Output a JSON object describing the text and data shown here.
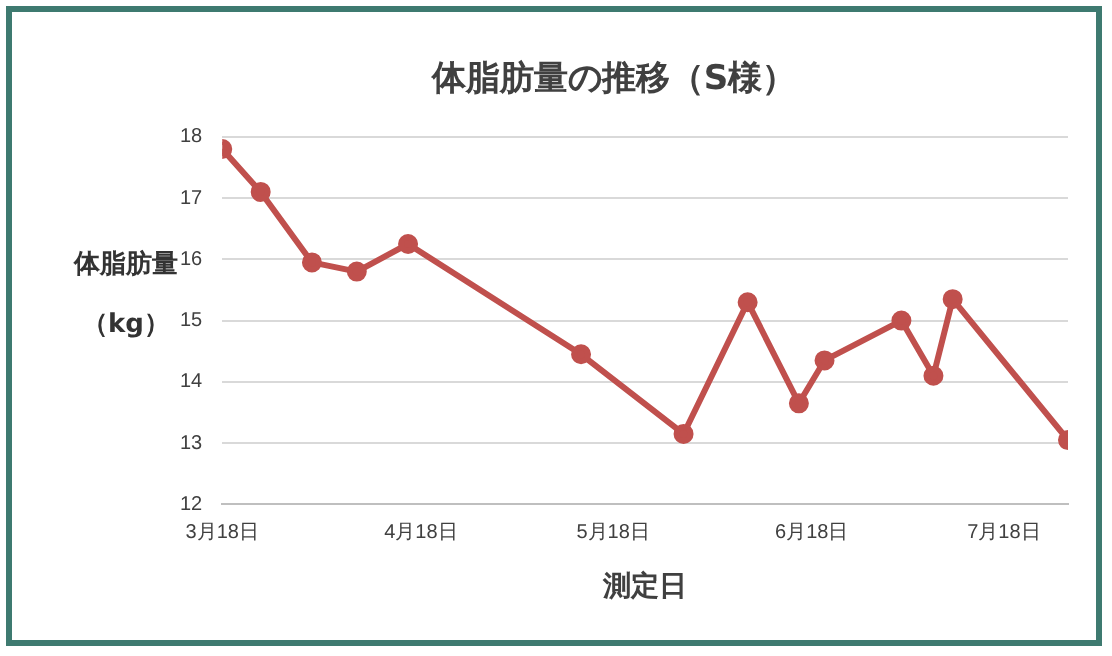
{
  "chart_data": {
    "type": "line",
    "title": "体脂肪量の推移（S様）",
    "xlabel": "測定日",
    "ylabel": "体脂肪量（kg）",
    "x": [
      "--03-18",
      "--03-24",
      "--04-01",
      "--04-08",
      "--04-16",
      "--05-13",
      "--05-29",
      "--06-08",
      "--06-16",
      "--06-20",
      "--07-02",
      "--07-07",
      "--07-10",
      "--07-28"
    ],
    "series": [
      {
        "color": "#c0504d",
        "values": [
          17.8,
          17.1,
          15.95,
          15.8,
          16.25,
          14.45,
          13.15,
          15.3,
          13.65,
          14.35,
          15.0,
          14.1,
          15.35,
          13.05
        ]
      }
    ],
    "xlim": [
      "--03-18",
      "--07-28"
    ],
    "xticks": [
      {
        "value": "--03-18",
        "label": "3月18日"
      },
      {
        "value": "--04-18",
        "label": "4月18日"
      },
      {
        "value": "--05-18",
        "label": "5月18日"
      },
      {
        "value": "--06-18",
        "label": "6月18日"
      },
      {
        "value": "--07-18",
        "label": "7月18日"
      }
    ],
    "ylim": [
      12,
      18
    ],
    "yticks": [
      12,
      13,
      14,
      15,
      16,
      17,
      18
    ],
    "grid": "y",
    "legend": false,
    "marker": "circle",
    "line_style": "solid"
  }
}
